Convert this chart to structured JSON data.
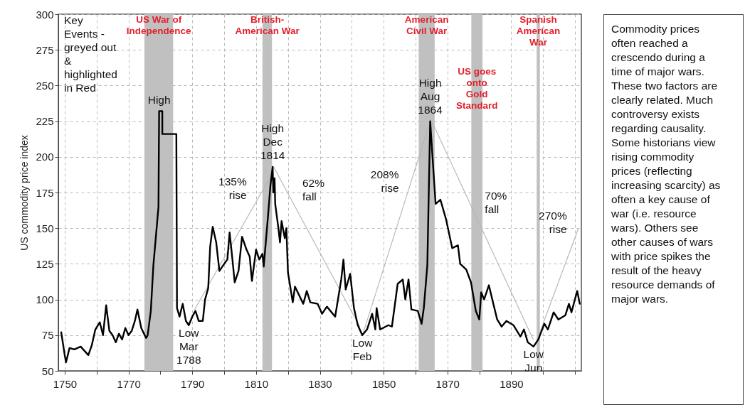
{
  "chart_data": {
    "type": "line",
    "ylabel": "US commodity price index",
    "xlim": [
      1748,
      1912
    ],
    "ylim": [
      50,
      300
    ],
    "xticks": [
      1750,
      {
        "value": 1760,
        "label": null
      },
      1770,
      {
        "value": 1780,
        "label": null
      },
      1790,
      {
        "value": 1800,
        "label": null
      },
      1810,
      {
        "value": 1820,
        "label": null
      },
      1830,
      {
        "value": 1840,
        "label": null
      },
      1850,
      {
        "value": 1860,
        "label": null
      },
      1870,
      {
        "value": 1880,
        "label": null
      },
      1890,
      {
        "value": 1900,
        "label": null
      },
      {
        "value": 1910,
        "label": null
      }
    ],
    "yticks": [
      50,
      75,
      100,
      125,
      150,
      175,
      200,
      225,
      250,
      275,
      300
    ],
    "grid": true,
    "bands": [
      {
        "axis": "x",
        "from": 1775,
        "to": 1784,
        "label": "US War of\nIndependence",
        "color": "#c0c0c0"
      },
      {
        "axis": "x",
        "from": 1812,
        "to": 1815,
        "label": "British-\nAmerican War",
        "color": "#c0c0c0"
      },
      {
        "axis": "x",
        "from": 1861,
        "to": 1866,
        "label": "American\nCivil War",
        "color": "#c0c0c0"
      },
      {
        "axis": "x",
        "from": 1877.5,
        "to": 1881,
        "label": "US goes\nonto\nGold\nStandard",
        "color": "#c0c0c0"
      },
      {
        "axis": "x",
        "from": 1898,
        "to": 1899,
        "label": "Spanish\nAmerican\nWar",
        "color": "#c0c0c0"
      }
    ],
    "series": [
      {
        "type": "line",
        "color": "#b4b4b4",
        "x": [
          1790.7,
          1814
        ],
        "values": [
          93,
          184
        ]
      },
      {
        "type": "line",
        "color": "#b4b4b4",
        "x": [
          1815.5,
          1842.5
        ],
        "values": [
          193,
          81
        ]
      },
      {
        "type": "line",
        "color": "#b4b4b4",
        "x": [
          1843.5,
          1864.2
        ],
        "values": [
          76,
          222
        ]
      },
      {
        "type": "line",
        "color": "#b4b4b4",
        "x": [
          1865.3,
          1896.9
        ],
        "values": [
          224,
          72
        ]
      },
      {
        "type": "line",
        "color": "#b4b4b4",
        "x": [
          1897.5,
          1911.1
        ],
        "values": [
          68,
          150
        ]
      },
      {
        "color": "#000000",
        "x": [
          1748.9,
          1750,
          1750.4,
          1751.5,
          1753,
          1755,
          1757.4,
          1758.5,
          1759.6,
          1761,
          1762,
          1763,
          1764,
          1765,
          1766,
          1767,
          1768,
          1769,
          1770,
          1771,
          1772,
          1772.8,
          1774,
          1775.5,
          1776,
          1777,
          1777.8,
          1779.4,
          1779.6,
          1780.6,
          1780.6,
          1785,
          1785.2,
          1786,
          1787,
          1788,
          1788.9,
          1790,
          1791,
          1792,
          1793.3,
          1794,
          1795,
          1795.6,
          1796.4,
          1797.5,
          1798.5,
          1800,
          1801,
          1801.7,
          1802.5,
          1803.3,
          1804.5,
          1805.6,
          1807,
          1808,
          1808.7,
          1810,
          1811,
          1812,
          1812.4,
          1813.8,
          1814.5,
          1815.2,
          1815.4,
          1815.8,
          1816,
          1817,
          1817.5,
          1818,
          1819,
          1819.5,
          1820,
          1821,
          1821.5,
          1822.2,
          1824.8,
          1825.9,
          1827,
          1829.3,
          1830.7,
          1832.2,
          1834.8,
          1836.7,
          1837.4,
          1838.1,
          1839.5,
          1840.7,
          1841.9,
          1843.3,
          1844.8,
          1846.4,
          1847.4,
          1847.8,
          1848.9,
          1851.5,
          1852.6,
          1854.4,
          1856,
          1856.8,
          1857.8,
          1858.7,
          1860.7,
          1861.9,
          1862.6,
          1863.7,
          1864.6,
          1865.5,
          1866.3,
          1867.8,
          1869.6,
          1871.5,
          1873.3,
          1874,
          1875.9,
          1877.4,
          1878.9,
          1880,
          1880.6,
          1881.5,
          1883,
          1884.4,
          1885.6,
          1887,
          1888.5,
          1890.7,
          1892.9,
          1894,
          1895.2,
          1897,
          1898.5,
          1900.4,
          1901.5,
          1903.3,
          1904.8,
          1907,
          1908.1,
          1908.9,
          1910.7,
          1911.5
        ],
        "values": [
          77,
          61,
          56,
          66,
          65,
          67,
          61,
          68,
          79,
          84,
          75,
          96,
          78,
          75,
          70,
          76,
          72,
          80,
          75,
          78,
          85,
          93,
          80,
          73,
          75,
          92,
          124,
          165,
          232,
          232,
          216,
          216,
          94,
          88,
          97,
          85,
          82,
          88,
          92,
          85,
          85,
          100,
          108,
          137,
          151,
          140,
          120,
          125,
          128,
          147,
          130,
          112,
          120,
          144,
          135,
          130,
          113,
          135,
          128,
          132,
          123,
          160,
          180,
          193,
          175,
          185,
          167,
          150,
          140,
          155,
          143,
          150,
          119,
          105,
          98,
          109,
          97,
          106,
          98,
          97,
          90,
          95,
          88,
          114,
          128,
          107,
          118,
          94,
          82,
          75,
          79,
          90,
          79,
          94,
          79,
          82,
          81,
          111,
          114,
          100,
          114,
          93,
          92,
          83,
          94,
          124,
          225,
          194,
          167,
          170,
          156,
          136,
          138,
          125,
          121,
          112,
          92,
          86,
          105,
          100,
          110,
          97,
          86,
          81,
          85,
          82,
          74,
          79,
          70,
          67,
          72,
          83,
          79,
          91,
          86,
          89,
          97,
          91,
          106,
          97
        ]
      }
    ],
    "annotations": [
      "Key\nEvents -\ngreyed out\n&\nhighlighted\nin Red",
      "Commodity prices\noften reached a\ncrescendo during a\ntime of major wars.\nThese two factors are\nclearly related. Much\ncontroversy exists\nregarding causality.\nSome historians view\nrising commodity\nprices (reflecting\nincreasing scarcity) as\noften a key cause of\nwar (i.e. resource\nwars). Others see\nother causes of wars\nwith price spikes the\nresult of the heavy\nresource demands of\nmajor wars.",
      {
        "text": "High",
        "x": 1779.6,
        "y": 232
      },
      {
        "text": "135%\nrise",
        "x": 1809.3,
        "y": 166
      },
      {
        "text": "High\nDec\n1814",
        "x": 1815.2,
        "y": 193
      },
      {
        "text": "62%\nfall",
        "x": 1822.3,
        "y": 165
      },
      {
        "text": "208%\nrise",
        "x": 1857,
        "y": 171
      },
      {
        "text": "High\nAug\n1864",
        "x": 1864.6,
        "y": 225
      },
      {
        "text": "70%\nfall",
        "x": 1879.5,
        "y": 156
      },
      {
        "text": "270%\nrise",
        "x": 1909.7,
        "y": 142
      },
      {
        "text": "Low\nMar\n1788",
        "x": 1788.9,
        "y": 82
      },
      {
        "text": "Low\nFeb",
        "x": 1843.3,
        "y": 75
      },
      {
        "text": "Low\nJun",
        "x": 1897,
        "y": 67
      }
    ]
  }
}
